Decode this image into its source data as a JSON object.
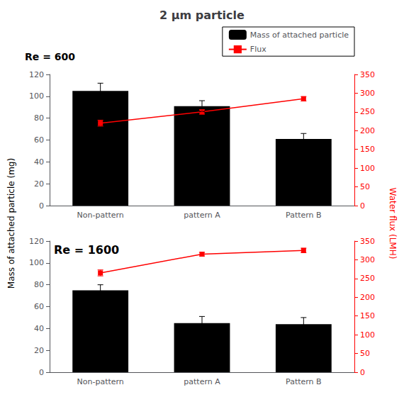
{
  "chart_data": [
    {
      "type": "bar",
      "title": "2 μm particle",
      "subtitle": "Re = 600",
      "categories": [
        "Non-pattern",
        "pattern A",
        "Pattern B"
      ],
      "ylabel": "Mass of attached particle (mg)",
      "y2label": "Water flux (LMH)",
      "series": [
        {
          "name": "Mass of attached particle",
          "type": "bar",
          "color": "#000000",
          "values": [
            105,
            91,
            61
          ],
          "errors": [
            7,
            5,
            5
          ]
        },
        {
          "name": "Flux",
          "type": "line",
          "color": "#ff0000",
          "marker": "square",
          "axis": "y2",
          "values": [
            220,
            250,
            285
          ],
          "errors": [
            8,
            6,
            6
          ]
        }
      ],
      "ylim": [
        0,
        120
      ],
      "yticks": [
        0,
        20,
        40,
        60,
        80,
        100,
        120
      ],
      "y2lim": [
        0,
        350
      ],
      "y2ticks": [
        0,
        50,
        100,
        150,
        200,
        250,
        300,
        350
      ],
      "grid": false,
      "legend": "upper right"
    },
    {
      "type": "bar",
      "subtitle": "Re = 1600",
      "categories": [
        "Non-pattern",
        "pattern A",
        "Pattern B"
      ],
      "series": [
        {
          "name": "Mass of attached particle",
          "type": "bar",
          "color": "#000000",
          "values": [
            75,
            45,
            44
          ],
          "errors": [
            5,
            6,
            6
          ]
        },
        {
          "name": "Flux",
          "type": "line",
          "color": "#ff0000",
          "marker": "square",
          "axis": "y2",
          "values": [
            265,
            315,
            325
          ],
          "errors": [
            8,
            5,
            6
          ]
        }
      ],
      "ylim": [
        0,
        120
      ],
      "yticks": [
        0,
        20,
        40,
        60,
        80,
        100,
        120
      ],
      "y2lim": [
        0,
        350
      ],
      "y2ticks": [
        0,
        50,
        100,
        150,
        200,
        250,
        300,
        350
      ],
      "grid": false
    }
  ]
}
